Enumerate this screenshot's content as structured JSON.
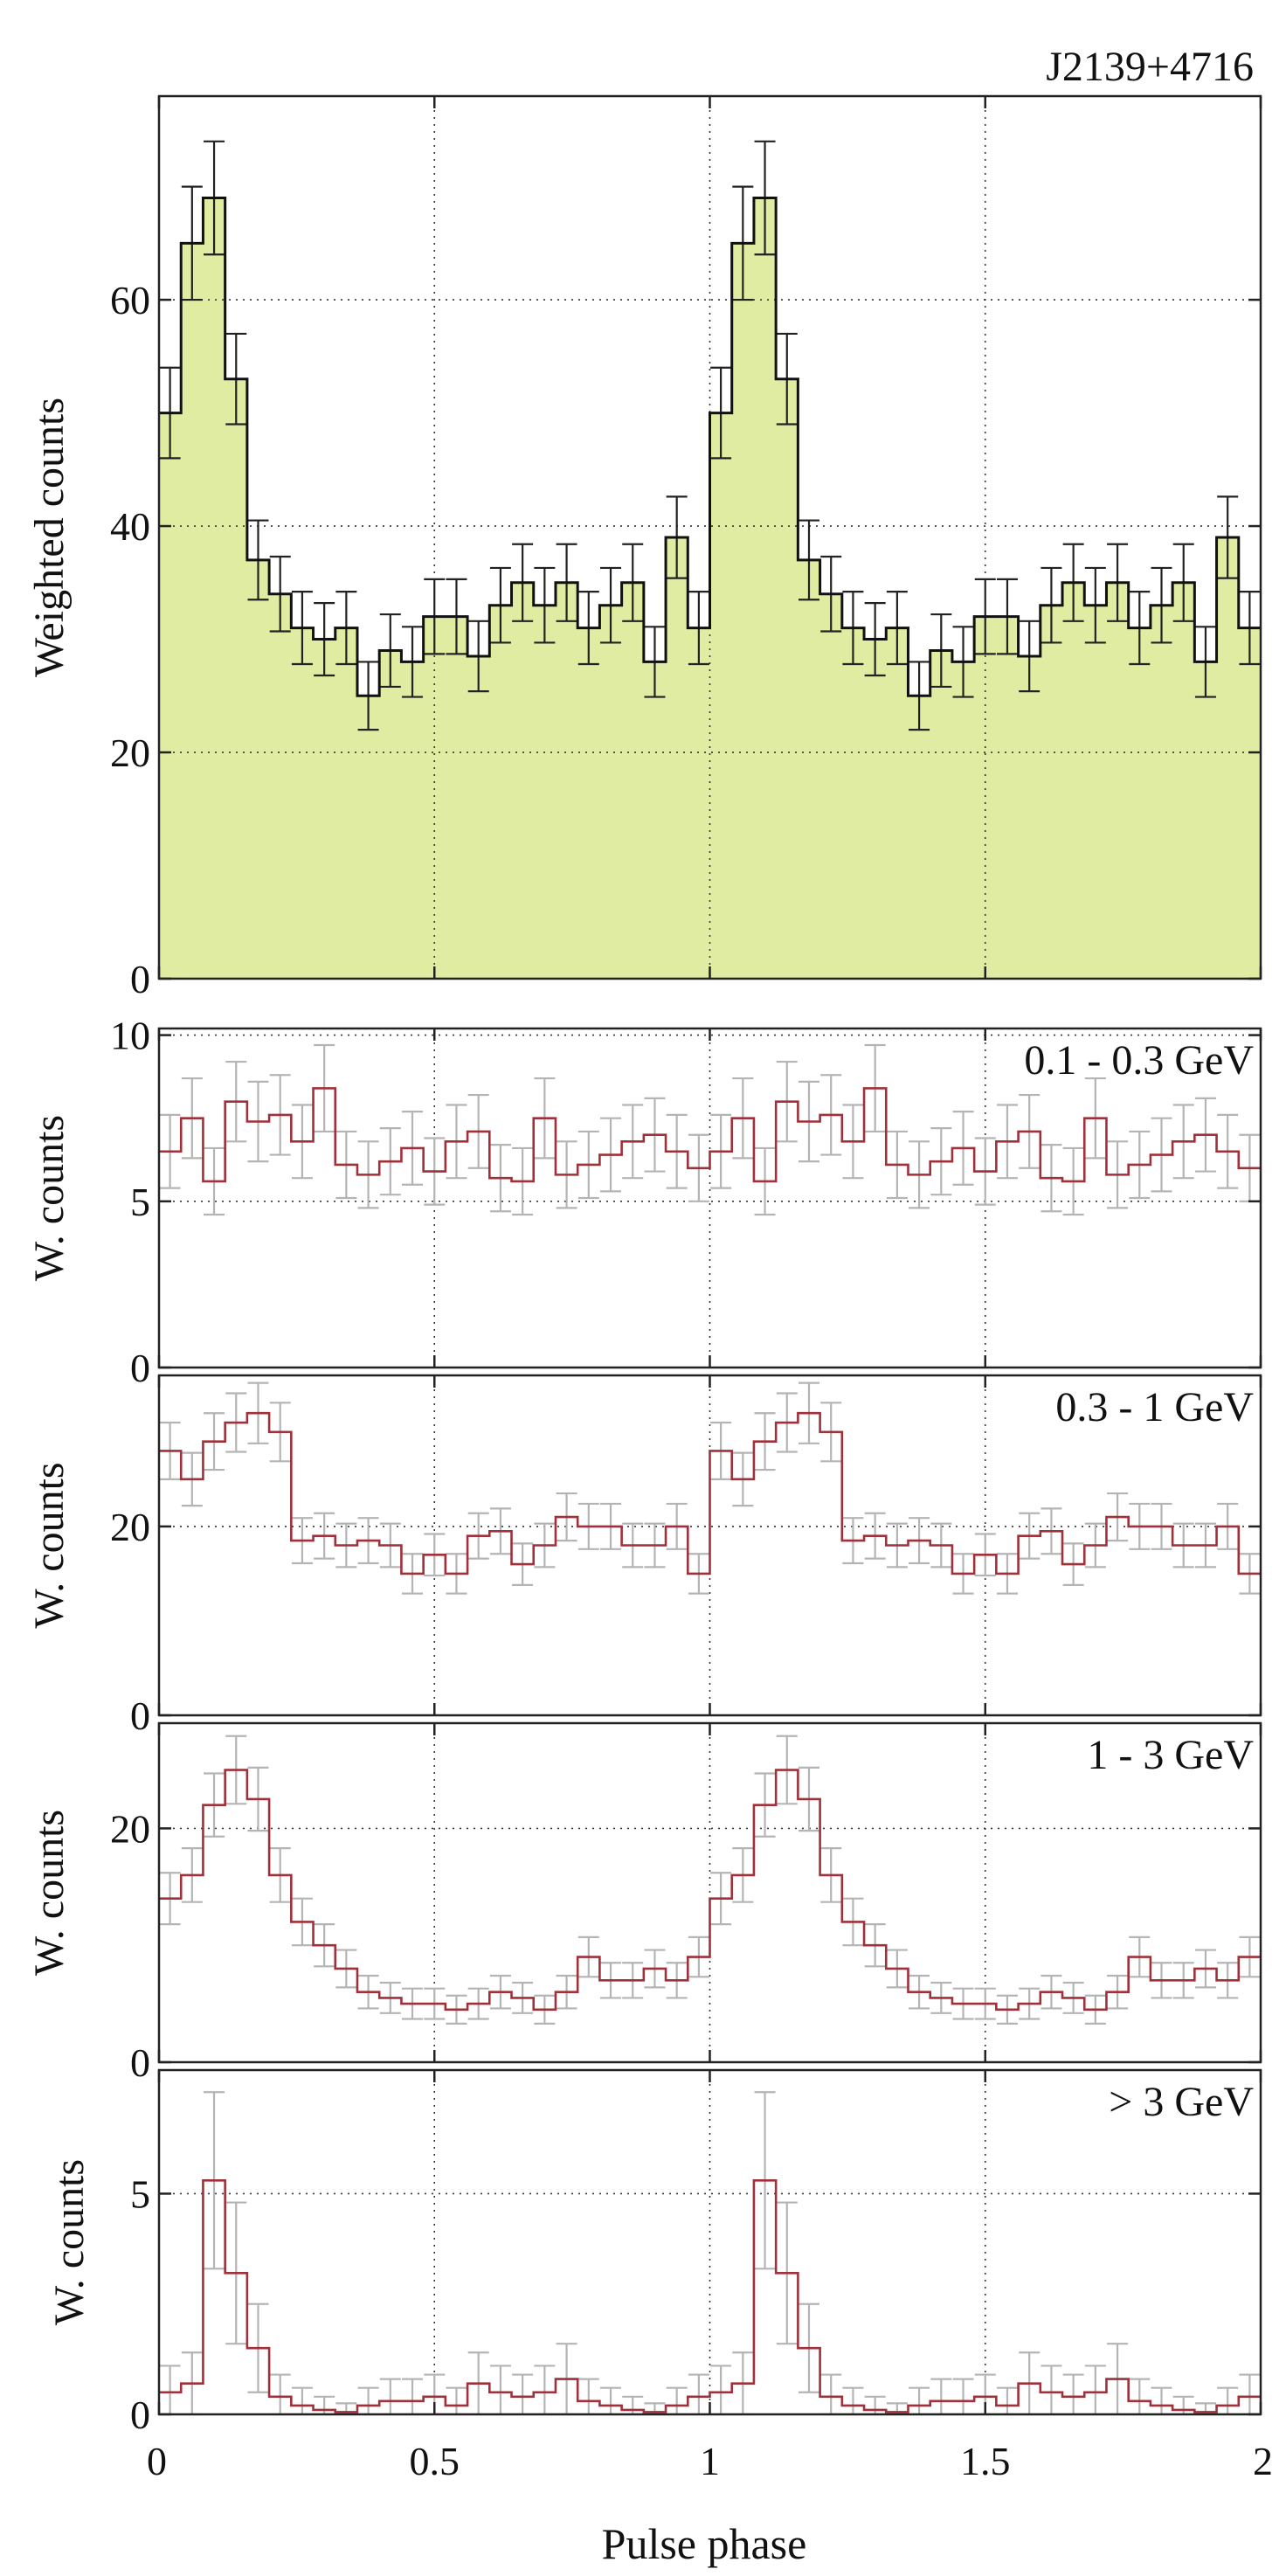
{
  "figure": {
    "xlabel": "Pulse phase",
    "xticks": [
      0,
      0.5,
      1,
      1.5,
      2
    ],
    "xtick_labels": [
      "0",
      "0.5",
      "1",
      "1.5",
      "2"
    ]
  },
  "colors": {
    "fill": "#dfeca2",
    "main_line": "#111111",
    "band_line": "#a0303a",
    "band_err": "#b4b4b4",
    "main_err": "#222222"
  },
  "chart_data": [
    {
      "type": "histogram",
      "title": "J2139+4716",
      "ylabel": "Weighted counts",
      "ylim": [
        0,
        78
      ],
      "yticks": [
        0,
        20,
        40,
        60
      ],
      "ytick_labels": [
        "0",
        "20",
        "40",
        "60"
      ],
      "x_range": [
        0,
        2
      ],
      "bins_per_cycle": 25,
      "values": [
        50,
        65,
        69,
        53,
        37,
        34,
        31,
        30,
        31,
        25,
        29,
        28,
        32,
        32,
        28.5,
        33,
        35,
        33,
        35,
        31,
        33,
        35,
        28,
        39,
        31
      ],
      "errors": [
        4,
        5,
        5,
        4,
        3.5,
        3.3,
        3.2,
        3.2,
        3.2,
        3,
        3.2,
        3.1,
        3.3,
        3.3,
        3.1,
        3.3,
        3.4,
        3.3,
        3.4,
        3.2,
        3.3,
        3.4,
        3.1,
        3.6,
        3.2
      ],
      "filled": true
    },
    {
      "type": "histogram",
      "title": "0.1 - 0.3 GeV",
      "ylabel": "W. counts",
      "ylim": [
        0,
        10.2
      ],
      "yticks": [
        0,
        5,
        10
      ],
      "ytick_labels": [
        "0",
        "5",
        "10"
      ],
      "x_range": [
        0,
        2
      ],
      "bins_per_cycle": 25,
      "values": [
        6.5,
        7.5,
        5.6,
        8.0,
        7.4,
        7.6,
        6.8,
        8.4,
        6.1,
        5.8,
        6.2,
        6.6,
        5.9,
        6.8,
        7.1,
        5.7,
        5.6,
        7.5,
        5.8,
        6.1,
        6.4,
        6.8,
        7.0,
        6.5,
        6.0
      ],
      "errors": [
        1.1,
        1.2,
        1.0,
        1.2,
        1.2,
        1.2,
        1.1,
        1.3,
        1.0,
        1.0,
        1.0,
        1.1,
        1.0,
        1.1,
        1.1,
        1.0,
        1.0,
        1.2,
        1.0,
        1.0,
        1.1,
        1.1,
        1.1,
        1.1,
        1.0
      ],
      "filled": false
    },
    {
      "type": "histogram",
      "title": "0.3 - 1 GeV",
      "ylabel": "W. counts",
      "ylim": [
        0,
        36
      ],
      "yticks": [
        0,
        20
      ],
      "ytick_labels": [
        "0",
        "20"
      ],
      "x_range": [
        0,
        2
      ],
      "bins_per_cycle": 25,
      "values": [
        28,
        25,
        29,
        31,
        32,
        30,
        18.5,
        19,
        18,
        18.5,
        18,
        15,
        17,
        15,
        19,
        19.5,
        16,
        18,
        21,
        20,
        20,
        18,
        18,
        20,
        15
      ],
      "errors": [
        3,
        2.8,
        3,
        3.1,
        3.2,
        3.1,
        2.4,
        2.4,
        2.3,
        2.4,
        2.3,
        2.1,
        2.2,
        2.1,
        2.4,
        2.4,
        2.2,
        2.3,
        2.5,
        2.4,
        2.4,
        2.3,
        2.3,
        2.4,
        2.1
      ],
      "filled": false
    },
    {
      "type": "histogram",
      "title": "1 - 3 GeV",
      "ylabel": "W. counts",
      "ylim": [
        0,
        29
      ],
      "yticks": [
        0,
        20
      ],
      "ytick_labels": [
        "0",
        "20"
      ],
      "x_range": [
        0,
        2
      ],
      "bins_per_cycle": 25,
      "values": [
        14,
        16,
        22,
        25,
        22.5,
        16,
        12,
        10,
        8,
        6,
        5.5,
        5,
        5,
        4.5,
        5,
        6,
        5.5,
        4.5,
        6,
        9,
        7,
        7,
        8,
        7,
        9
      ],
      "errors": [
        2.2,
        2.3,
        2.7,
        2.9,
        2.7,
        2.3,
        2.0,
        1.8,
        1.6,
        1.4,
        1.3,
        1.3,
        1.3,
        1.2,
        1.3,
        1.4,
        1.3,
        1.2,
        1.4,
        1.7,
        1.5,
        1.5,
        1.6,
        1.5,
        1.7
      ],
      "filled": false
    },
    {
      "type": "histogram",
      "title": "> 3 GeV",
      "ylabel": "W. counts",
      "ylim": [
        0,
        7.8
      ],
      "yticks": [
        0,
        5
      ],
      "ytick_labels": [
        "0",
        "5"
      ],
      "x_range": [
        0,
        2
      ],
      "bins_per_cycle": 25,
      "values": [
        0.5,
        0.7,
        5.3,
        3.2,
        1.5,
        0.4,
        0.2,
        0.1,
        0.05,
        0.2,
        0.3,
        0.3,
        0.4,
        0.2,
        0.7,
        0.5,
        0.4,
        0.5,
        0.8,
        0.3,
        0.2,
        0.1,
        0.05,
        0.2,
        0.4
      ],
      "errors": [
        0.6,
        0.7,
        2.0,
        1.6,
        1.0,
        0.5,
        0.4,
        0.3,
        0.2,
        0.4,
        0.5,
        0.5,
        0.5,
        0.4,
        0.7,
        0.6,
        0.5,
        0.6,
        0.8,
        0.5,
        0.4,
        0.3,
        0.2,
        0.4,
        0.5
      ],
      "filled": false
    }
  ]
}
